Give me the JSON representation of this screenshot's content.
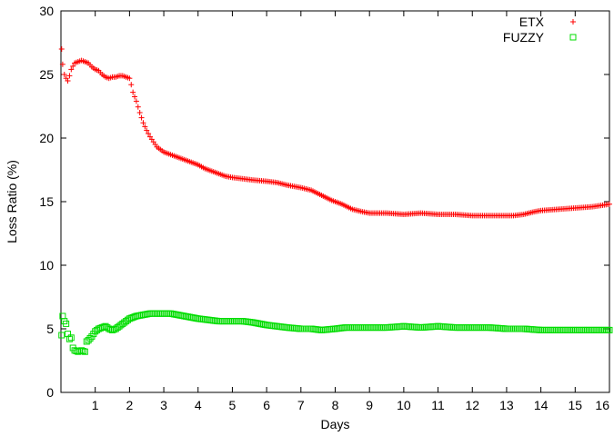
{
  "chart_data": {
    "type": "scatter",
    "title": "",
    "xlabel": "Days",
    "ylabel": "Loss Ratio (%)",
    "xlim": [
      0,
      16
    ],
    "ylim": [
      0,
      30
    ],
    "xticks": [
      1,
      2,
      3,
      4,
      5,
      6,
      7,
      8,
      9,
      10,
      11,
      12,
      13,
      14,
      15,
      16
    ],
    "yticks": [
      0,
      5,
      10,
      15,
      20,
      25,
      30
    ],
    "grid": false,
    "legend_position": "top-right",
    "series": [
      {
        "name": "ETX",
        "marker": "plus",
        "color": "#ff0000",
        "points": [
          [
            0.02,
            27.0
          ],
          [
            0.05,
            25.8
          ],
          [
            0.1,
            25.0
          ],
          [
            0.15,
            24.7
          ],
          [
            0.2,
            24.5
          ],
          [
            0.25,
            24.9
          ],
          [
            0.3,
            25.4
          ],
          [
            0.4,
            25.9
          ],
          [
            0.5,
            26.0
          ],
          [
            0.6,
            26.1
          ],
          [
            0.7,
            26.0
          ],
          [
            0.8,
            25.9
          ],
          [
            0.9,
            25.6
          ],
          [
            1.0,
            25.4
          ],
          [
            1.1,
            25.3
          ],
          [
            1.2,
            25.0
          ],
          [
            1.3,
            24.8
          ],
          [
            1.4,
            24.7
          ],
          [
            1.5,
            24.8
          ],
          [
            1.6,
            24.8
          ],
          [
            1.7,
            24.9
          ],
          [
            1.8,
            24.9
          ],
          [
            1.9,
            24.8
          ],
          [
            2.0,
            24.7
          ],
          [
            2.05,
            24.2
          ],
          [
            2.1,
            23.6
          ],
          [
            2.2,
            22.9
          ],
          [
            2.3,
            22.0
          ],
          [
            2.4,
            21.2
          ],
          [
            2.5,
            20.6
          ],
          [
            2.6,
            20.1
          ],
          [
            2.7,
            19.7
          ],
          [
            2.8,
            19.3
          ],
          [
            2.9,
            19.1
          ],
          [
            3.0,
            18.9
          ],
          [
            3.2,
            18.7
          ],
          [
            3.4,
            18.5
          ],
          [
            3.6,
            18.3
          ],
          [
            3.8,
            18.1
          ],
          [
            4.0,
            17.9
          ],
          [
            4.2,
            17.6
          ],
          [
            4.4,
            17.4
          ],
          [
            4.6,
            17.2
          ],
          [
            4.8,
            17.0
          ],
          [
            5.0,
            16.9
          ],
          [
            5.3,
            16.8
          ],
          [
            5.6,
            16.7
          ],
          [
            6.0,
            16.6
          ],
          [
            6.3,
            16.5
          ],
          [
            6.6,
            16.3
          ],
          [
            7.0,
            16.1
          ],
          [
            7.3,
            15.9
          ],
          [
            7.6,
            15.5
          ],
          [
            7.9,
            15.1
          ],
          [
            8.2,
            14.8
          ],
          [
            8.5,
            14.4
          ],
          [
            8.8,
            14.2
          ],
          [
            9.0,
            14.1
          ],
          [
            9.5,
            14.1
          ],
          [
            10.0,
            14.0
          ],
          [
            10.5,
            14.1
          ],
          [
            11.0,
            14.0
          ],
          [
            11.5,
            14.0
          ],
          [
            12.0,
            13.9
          ],
          [
            12.5,
            13.9
          ],
          [
            13.0,
            13.9
          ],
          [
            13.2,
            13.9
          ],
          [
            13.5,
            14.0
          ],
          [
            13.8,
            14.2
          ],
          [
            14.0,
            14.3
          ],
          [
            14.5,
            14.4
          ],
          [
            15.0,
            14.5
          ],
          [
            15.5,
            14.6
          ],
          [
            16.0,
            14.8
          ]
        ]
      },
      {
        "name": "FUZZY",
        "marker": "square",
        "color": "#00dd00",
        "points": [
          [
            0.02,
            4.5
          ],
          [
            0.05,
            6.0
          ],
          [
            0.1,
            5.6
          ],
          [
            0.15,
            5.4
          ],
          [
            0.2,
            4.6
          ],
          [
            0.25,
            4.2
          ],
          [
            0.3,
            4.3
          ],
          [
            0.35,
            3.5
          ],
          [
            0.4,
            3.3
          ],
          [
            0.5,
            3.2
          ],
          [
            0.6,
            3.3
          ],
          [
            0.7,
            3.2
          ],
          [
            0.75,
            4.0
          ],
          [
            0.8,
            4.1
          ],
          [
            0.9,
            4.4
          ],
          [
            1.0,
            4.8
          ],
          [
            1.1,
            5.0
          ],
          [
            1.2,
            5.1
          ],
          [
            1.3,
            5.2
          ],
          [
            1.4,
            5.0
          ],
          [
            1.5,
            4.9
          ],
          [
            1.6,
            5.0
          ],
          [
            1.7,
            5.2
          ],
          [
            1.8,
            5.4
          ],
          [
            1.9,
            5.6
          ],
          [
            2.0,
            5.8
          ],
          [
            2.2,
            6.0
          ],
          [
            2.4,
            6.1
          ],
          [
            2.6,
            6.2
          ],
          [
            2.8,
            6.2
          ],
          [
            3.0,
            6.2
          ],
          [
            3.2,
            6.2
          ],
          [
            3.4,
            6.1
          ],
          [
            3.6,
            6.0
          ],
          [
            3.8,
            5.9
          ],
          [
            4.0,
            5.8
          ],
          [
            4.3,
            5.7
          ],
          [
            4.6,
            5.6
          ],
          [
            5.0,
            5.6
          ],
          [
            5.3,
            5.6
          ],
          [
            5.6,
            5.5
          ],
          [
            6.0,
            5.3
          ],
          [
            6.3,
            5.2
          ],
          [
            6.6,
            5.1
          ],
          [
            7.0,
            5.0
          ],
          [
            7.3,
            5.0
          ],
          [
            7.6,
            4.9
          ],
          [
            8.0,
            5.0
          ],
          [
            8.3,
            5.1
          ],
          [
            8.6,
            5.1
          ],
          [
            9.0,
            5.1
          ],
          [
            9.5,
            5.1
          ],
          [
            10.0,
            5.2
          ],
          [
            10.5,
            5.1
          ],
          [
            11.0,
            5.2
          ],
          [
            11.5,
            5.1
          ],
          [
            12.0,
            5.1
          ],
          [
            12.5,
            5.1
          ],
          [
            13.0,
            5.0
          ],
          [
            13.5,
            5.0
          ],
          [
            14.0,
            4.9
          ],
          [
            14.5,
            4.9
          ],
          [
            15.0,
            4.9
          ],
          [
            15.5,
            4.9
          ],
          [
            16.0,
            4.9
          ]
        ]
      }
    ]
  }
}
